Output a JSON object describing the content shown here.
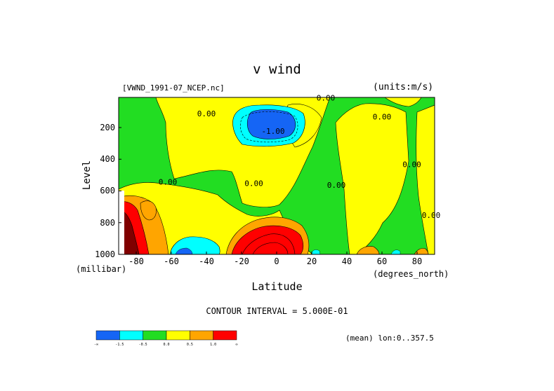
{
  "chart_data": {
    "type": "heatmap",
    "title": "v wind",
    "file_label": "[VWND_1991-07_NCEP.nc]",
    "units_label": "(units:m/s)",
    "xlabel": "Latitude",
    "x_unit": "(degrees_north)",
    "ylabel": "Level",
    "y_unit": "(millibar)",
    "xlim": [
      -90,
      90
    ],
    "ylim": [
      1000,
      10
    ],
    "x_ticks": [
      -80,
      -60,
      -40,
      -20,
      0,
      20,
      40,
      60,
      80
    ],
    "y_ticks": [
      200,
      400,
      600,
      800,
      1000
    ],
    "contour_interval_text": "CONTOUR INTERVAL = 5.000E-01",
    "mean_text": "(mean) lon:0..357.5",
    "contour_labels": [
      {
        "text": "0.00",
        "lat": -40,
        "lev": 130
      },
      {
        "text": "0.00",
        "lat": 28,
        "lev": 30
      },
      {
        "text": "0.00",
        "lat": 60,
        "lev": 150
      },
      {
        "text": "0.00",
        "lat": -62,
        "lev": 560
      },
      {
        "text": "0.00",
        "lat": -13,
        "lev": 570
      },
      {
        "text": "0.00",
        "lat": 34,
        "lev": 580
      },
      {
        "text": "0.00",
        "lat": 77,
        "lev": 450
      },
      {
        "text": "0.00",
        "lat": 88,
        "lev": 770
      },
      {
        "text": "-1.00",
        "lat": -2,
        "lev": 240
      }
    ],
    "colorbar": {
      "levels": [
        "-∞",
        "-1.5",
        "-0.5",
        "0.0",
        "0.5",
        "1.0",
        "∞"
      ],
      "colors": [
        "#1565f5",
        "#00ffff",
        "#22dd22",
        "#ffff00",
        "#ffa500",
        "#ff0000"
      ]
    },
    "colors": {
      "strong_negative": "#1565f5",
      "negative": "#00ffff",
      "near_zero": "#22dd22",
      "weak_positive": "#ffff00",
      "positive": "#ffa500",
      "strong_positive": "#ff0000",
      "extreme_positive": "#800000"
    }
  }
}
